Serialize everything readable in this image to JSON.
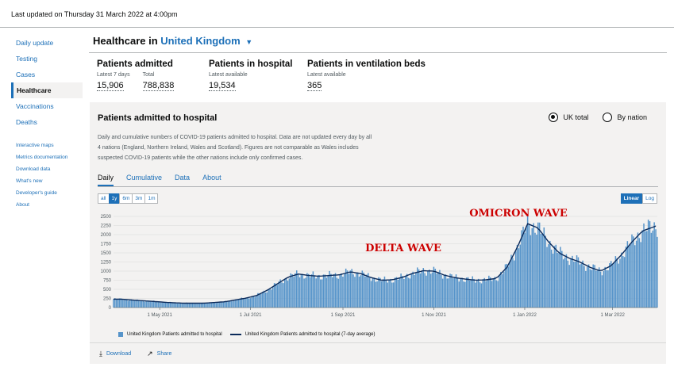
{
  "last_updated": "Last updated on Thursday 31 March 2022 at 4:00pm",
  "sidenav": {
    "items": [
      {
        "label": "Daily update"
      },
      {
        "label": "Testing"
      },
      {
        "label": "Cases"
      },
      {
        "label": "Healthcare"
      },
      {
        "label": "Vaccinations"
      },
      {
        "label": "Deaths"
      }
    ],
    "links": [
      {
        "label": "Interactive maps"
      },
      {
        "label": "Metrics documentation"
      },
      {
        "label": "Download data"
      },
      {
        "label": "What's new"
      },
      {
        "label": "Developer's guide"
      },
      {
        "label": "About"
      }
    ]
  },
  "header": {
    "prefix": "Healthcare in",
    "area": "United Kingdom",
    "caret": "▼"
  },
  "headline": {
    "admitted": {
      "title": "Patients admitted",
      "l1": "Latest 7 days",
      "v1": "15,906",
      "l2": "Total",
      "v2": "788,838"
    },
    "hospital": {
      "title": "Patients in hospital",
      "l1": "Latest available",
      "v1": "19,534"
    },
    "ventilation": {
      "title": "Patients in ventilation beds",
      "l1": "Latest available",
      "v1": "365"
    }
  },
  "card": {
    "title": "Patients admitted to hospital",
    "radio_uk": "UK total",
    "radio_nation": "By nation",
    "description": "Daily and cumulative numbers of COVID-19 patients admitted to hospital. Data are not updated every day by all 4 nations (England, Northern Ireland, Wales and Scotland). Figures are not comparable as Wales includes suspected COVID-19 patients while the other nations include only confirmed cases.",
    "tabs": [
      "Daily",
      "Cumulative",
      "Data",
      "About"
    ],
    "ranges": [
      "all",
      "1y",
      "6m",
      "3m",
      "1m"
    ],
    "scale": [
      "Linear",
      "Log"
    ],
    "download": "Download",
    "share": "Share"
  },
  "chart_data": {
    "type": "bar",
    "y_ticks": [
      "0",
      "250",
      "500",
      "750",
      "1000",
      "1250",
      "1500",
      "1750",
      "2000",
      "2250",
      "2500"
    ],
    "ylim": [
      0,
      2500
    ],
    "x_ticks": [
      "1 May 2021",
      "1 Jul 2021",
      "1 Sep 2021",
      "1 Nov 2021",
      "1 Jan 2022",
      "1 Mar 2022"
    ],
    "weekly_points": [
      [
        "2021-04-05",
        230
      ],
      [
        "2021-04-15",
        200
      ],
      [
        "2021-04-26",
        170
      ],
      [
        "2021-05-06",
        140
      ],
      [
        "2021-05-17",
        120
      ],
      [
        "2021-05-31",
        120
      ],
      [
        "2021-06-14",
        160
      ],
      [
        "2021-06-21",
        210
      ],
      [
        "2021-06-28",
        260
      ],
      [
        "2021-07-05",
        330
      ],
      [
        "2021-07-12",
        470
      ],
      [
        "2021-07-19",
        650
      ],
      [
        "2021-07-26",
        830
      ],
      [
        "2021-08-02",
        920
      ],
      [
        "2021-08-09",
        880
      ],
      [
        "2021-08-16",
        860
      ],
      [
        "2021-08-23",
        880
      ],
      [
        "2021-08-30",
        900
      ],
      [
        "2021-09-06",
        980
      ],
      [
        "2021-09-13",
        930
      ],
      [
        "2021-09-20",
        820
      ],
      [
        "2021-09-27",
        750
      ],
      [
        "2021-10-04",
        760
      ],
      [
        "2021-10-11",
        830
      ],
      [
        "2021-10-18",
        940
      ],
      [
        "2021-10-25",
        1010
      ],
      [
        "2021-11-01",
        1000
      ],
      [
        "2021-11-08",
        890
      ],
      [
        "2021-11-15",
        820
      ],
      [
        "2021-11-22",
        780
      ],
      [
        "2021-11-29",
        750
      ],
      [
        "2021-12-06",
        760
      ],
      [
        "2021-12-13",
        800
      ],
      [
        "2021-12-20",
        1100
      ],
      [
        "2021-12-27",
        1650
      ],
      [
        "2022-01-03",
        2300
      ],
      [
        "2022-01-10",
        2180
      ],
      [
        "2022-01-17",
        1800
      ],
      [
        "2022-01-24",
        1500
      ],
      [
        "2022-01-31",
        1350
      ],
      [
        "2022-02-07",
        1250
      ],
      [
        "2022-02-14",
        1100
      ],
      [
        "2022-02-21",
        1000
      ],
      [
        "2022-02-28",
        1150
      ],
      [
        "2022-03-07",
        1450
      ],
      [
        "2022-03-14",
        1800
      ],
      [
        "2022-03-21",
        2100
      ],
      [
        "2022-03-31",
        2250
      ]
    ],
    "series": [
      {
        "name": "United Kingdom Patients admitted to hospital",
        "color": "#5694ca"
      },
      {
        "name": "United Kingdom Patients admitted to hospital (7-day average)",
        "color": "#0b2a5a"
      }
    ],
    "annotations": [
      {
        "text": "DELTA WAVE",
        "color": "#cc0000"
      },
      {
        "text": "OMICRON WAVE",
        "color": "#cc0000"
      }
    ],
    "grid": true,
    "legend": "bottom"
  }
}
